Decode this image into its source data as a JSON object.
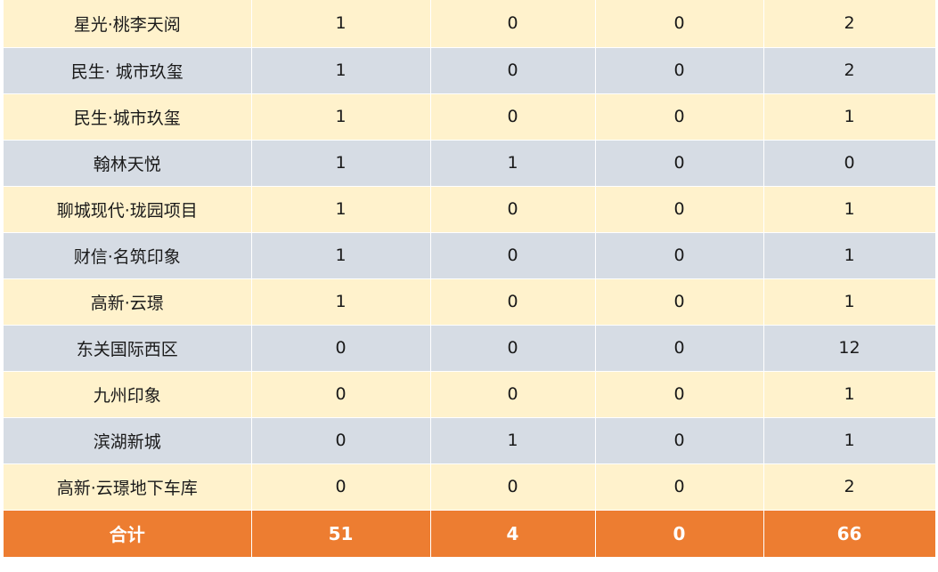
{
  "table": {
    "rows": [
      {
        "name": "星光·桃李天阅",
        "c1": "1",
        "c2": "0",
        "c3": "0",
        "c4": "2"
      },
      {
        "name": "民生· 城市玖玺",
        "c1": "1",
        "c2": "0",
        "c3": "0",
        "c4": "2"
      },
      {
        "name": "民生·城市玖玺",
        "c1": "1",
        "c2": "0",
        "c3": "0",
        "c4": "1"
      },
      {
        "name": "翰林天悦",
        "c1": "1",
        "c2": "1",
        "c3": "0",
        "c4": "0"
      },
      {
        "name": "聊城现代·珑园项目",
        "c1": "1",
        "c2": "0",
        "c3": "0",
        "c4": "1"
      },
      {
        "name": "财信·名筑印象",
        "c1": "1",
        "c2": "0",
        "c3": "0",
        "c4": "1"
      },
      {
        "name": "高新·云璟",
        "c1": "1",
        "c2": "0",
        "c3": "0",
        "c4": "1"
      },
      {
        "name": "东关国际西区",
        "c1": "0",
        "c2": "0",
        "c3": "0",
        "c4": "12"
      },
      {
        "name": "九州印象",
        "c1": "0",
        "c2": "0",
        "c3": "0",
        "c4": "1"
      },
      {
        "name": "滨湖新城",
        "c1": "0",
        "c2": "1",
        "c3": "0",
        "c4": "1"
      },
      {
        "name": "高新·云璟地下车库",
        "c1": "0",
        "c2": "0",
        "c3": "0",
        "c4": "2"
      }
    ],
    "total": {
      "name": "合计",
      "c1": "51",
      "c2": "4",
      "c3": "0",
      "c4": "66"
    }
  },
  "colors": {
    "row_odd": "#fff2cc",
    "row_even": "#d6dce4",
    "total_bg": "#ed7d31",
    "total_text": "#ffffff"
  }
}
